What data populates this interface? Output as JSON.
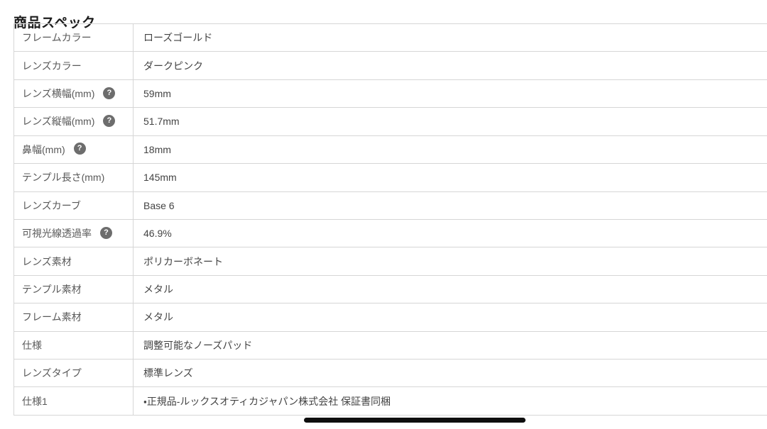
{
  "page": {
    "title": "商品スペック"
  },
  "table": {
    "help_icon": "?",
    "rows": [
      {
        "label": "フレームカラー",
        "value": "ローズゴールド",
        "help": false
      },
      {
        "label": "レンズカラー",
        "value": "ダークピンク",
        "help": false
      },
      {
        "label": "レンズ横幅(mm)",
        "value": "59mm",
        "help": true
      },
      {
        "label": "レンズ縦幅(mm)",
        "value": "51.7mm",
        "help": true
      },
      {
        "label": "鼻幅(mm)",
        "value": "18mm",
        "help": true
      },
      {
        "label": "テンプル長さ(mm)",
        "value": "145mm",
        "help": false
      },
      {
        "label": "レンズカーブ",
        "value": "Base 6",
        "help": false
      },
      {
        "label": "可視光線透過率",
        "value": "46.9%",
        "help": true
      },
      {
        "label": "レンズ素材",
        "value": "ポリカーボネート",
        "help": false
      },
      {
        "label": "テンプル素材",
        "value": "メタル",
        "help": false
      },
      {
        "label": "フレーム素材",
        "value": "メタル",
        "help": false
      },
      {
        "label": "仕様",
        "value": "調整可能なノーズパッド",
        "help": false
      },
      {
        "label": "レンズタイプ",
        "value": "標準レンズ",
        "help": false
      },
      {
        "label": "仕様1",
        "value": "・正規品-ルックスオティカジャパン株式会社 保証書同梱",
        "help": false
      }
    ]
  },
  "colors": {
    "border": "#d6d6d6",
    "label_text": "#595959",
    "value_text": "#434343",
    "help_icon_bg": "#6d6d6d",
    "title_text": "#1c1c1c",
    "scrollbar": "#0e0e0e"
  }
}
